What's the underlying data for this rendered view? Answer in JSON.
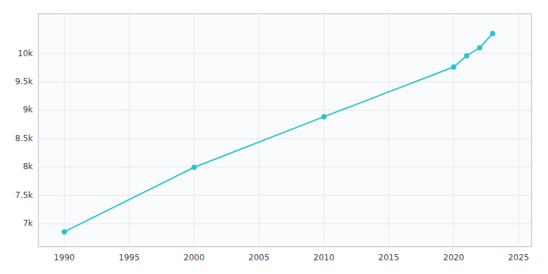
{
  "chart_data": {
    "type": "line",
    "x": [
      1990,
      2000,
      2010,
      2020,
      2021,
      2022,
      2023
    ],
    "values": [
      6860,
      7996,
      8886,
      9762,
      9959,
      10100,
      10350
    ],
    "color": "#26c6d0",
    "marker": "circle",
    "xlim": [
      1988,
      2026
    ],
    "ylim": [
      6600,
      10700
    ],
    "xticks": [
      1990,
      1995,
      2000,
      2005,
      2010,
      2015,
      2020,
      2025
    ],
    "yticks": [
      {
        "value": 7000,
        "label": "7k"
      },
      {
        "value": 7500,
        "label": "7.5k"
      },
      {
        "value": 8000,
        "label": "8k"
      },
      {
        "value": 8500,
        "label": "8.5k"
      },
      {
        "value": 9000,
        "label": "9k"
      },
      {
        "value": 9500,
        "label": "9.5k"
      },
      {
        "value": 10000,
        "label": "10k"
      }
    ],
    "grid": true
  }
}
